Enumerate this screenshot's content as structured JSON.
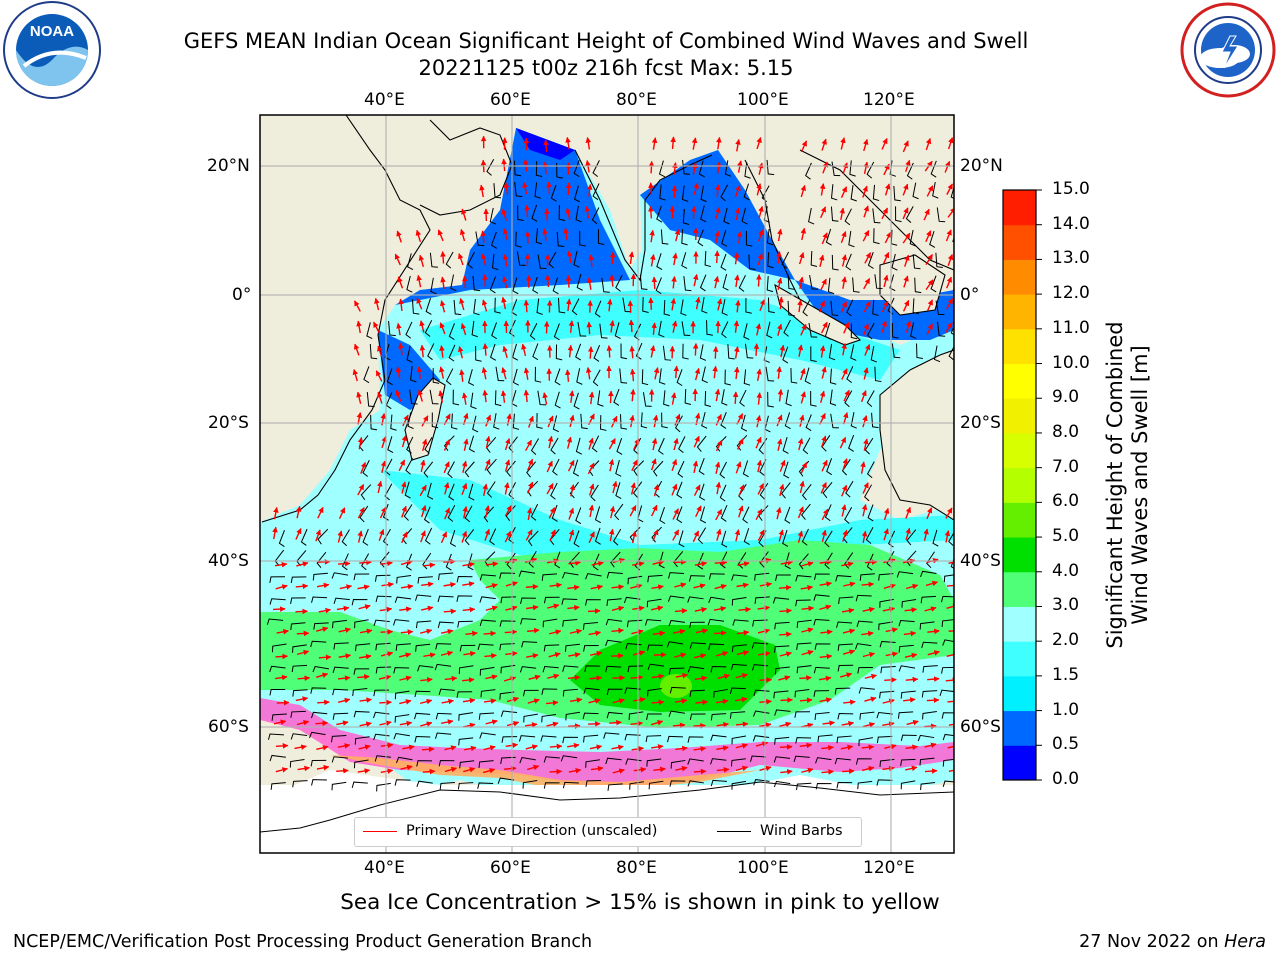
{
  "title_line1": "GEFS MEAN Indian Ocean Significant Height of Combined Wind Waves and Swell",
  "title_line2": "20221125 t00z 216h fcst   Max: 5.15",
  "noaa_logo": {
    "text": "NOAA",
    "ring_text": "NATIONAL OCEANIC AND ATMOSPHERIC ADMINISTRATION",
    "ring_text_bottom": "U.S. DEPARTMENT OF COMMERCE"
  },
  "nws_logo": {
    "ring_text": "NATIONAL WEATHER SERVICE"
  },
  "map": {
    "lon_labels": [
      "40°E",
      "60°E",
      "80°E",
      "100°E",
      "120°E"
    ],
    "lat_labels": [
      "20°N",
      "0°",
      "20°S",
      "40°S",
      "60°S"
    ],
    "colors": {
      "land": "#efeddc",
      "grid": "#b0b0b0",
      "coast": "#000000",
      "wave_arrow": "#ff0000",
      "wind_barb": "#000000"
    }
  },
  "legend": {
    "wave_direction": "Primary Wave Direction (unscaled)",
    "wind_barbs": "Wind Barbs"
  },
  "colorbar": {
    "label_line1": "Significant Height of Combined",
    "label_line2": "Wind Waves and Swell [m]",
    "ticks": [
      "0.0",
      "0.5",
      "1.0",
      "1.5",
      "2.0",
      "3.0",
      "4.0",
      "5.0",
      "6.0",
      "7.0",
      "8.0",
      "9.0",
      "10.0",
      "11.0",
      "12.0",
      "13.0",
      "14.0",
      "15.0"
    ],
    "colors": [
      "#0000ff",
      "#0069ff",
      "#00f0ff",
      "#40ffff",
      "#a0ffff",
      "#50ff78",
      "#00e000",
      "#64ee00",
      "#b4ff00",
      "#d7ff00",
      "#f0f000",
      "#ffff00",
      "#ffe100",
      "#ffb400",
      "#ff8c00",
      "#ff5000",
      "#ff1e00"
    ]
  },
  "caption": "Sea Ice Concentration > 15% is shown in pink to yellow",
  "footer_left": "NCEP/EMC/Verification Post Processing Product Generation Branch",
  "footer_right_prefix": "27 Nov 2022 on ",
  "footer_right_host": "Hera"
}
